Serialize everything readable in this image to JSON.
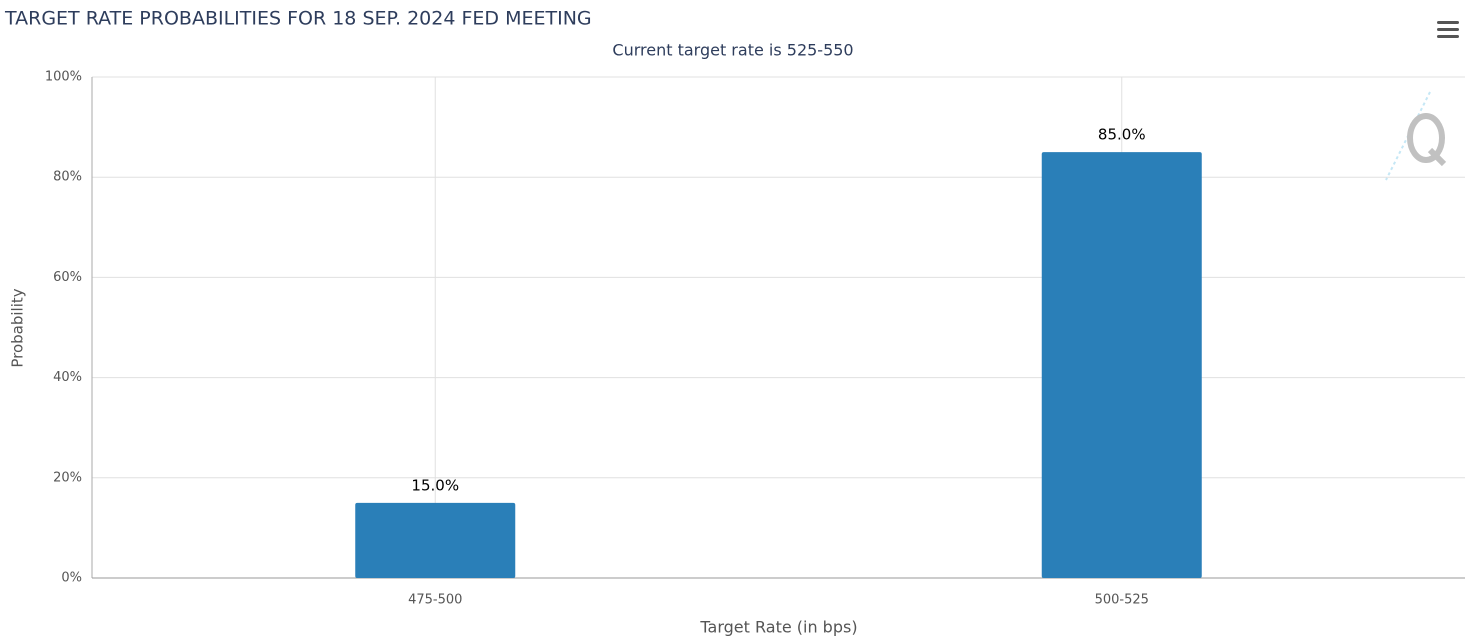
{
  "chart_data": {
    "type": "bar",
    "title": "TARGET RATE PROBABILITIES FOR 18 SEP. 2024 FED MEETING",
    "subtitle": "Current target rate is 525-550",
    "x_label": "Target Rate (in bps)",
    "y_label": "Probability",
    "categories": [
      "475-500",
      "500-525"
    ],
    "values": [
      15,
      85
    ],
    "value_labels": [
      "15.0%",
      "85.0%"
    ],
    "color": "#2a7fb8",
    "ylim": [
      0,
      100
    ],
    "yticks": [
      {
        "value": 0,
        "label": "0%"
      },
      {
        "value": 20,
        "label": "20%"
      },
      {
        "value": 40,
        "label": "40%"
      },
      {
        "value": 60,
        "label": "60%"
      },
      {
        "value": 80,
        "label": "80%"
      },
      {
        "value": 100,
        "label": "100%"
      }
    ],
    "grid": true
  }
}
